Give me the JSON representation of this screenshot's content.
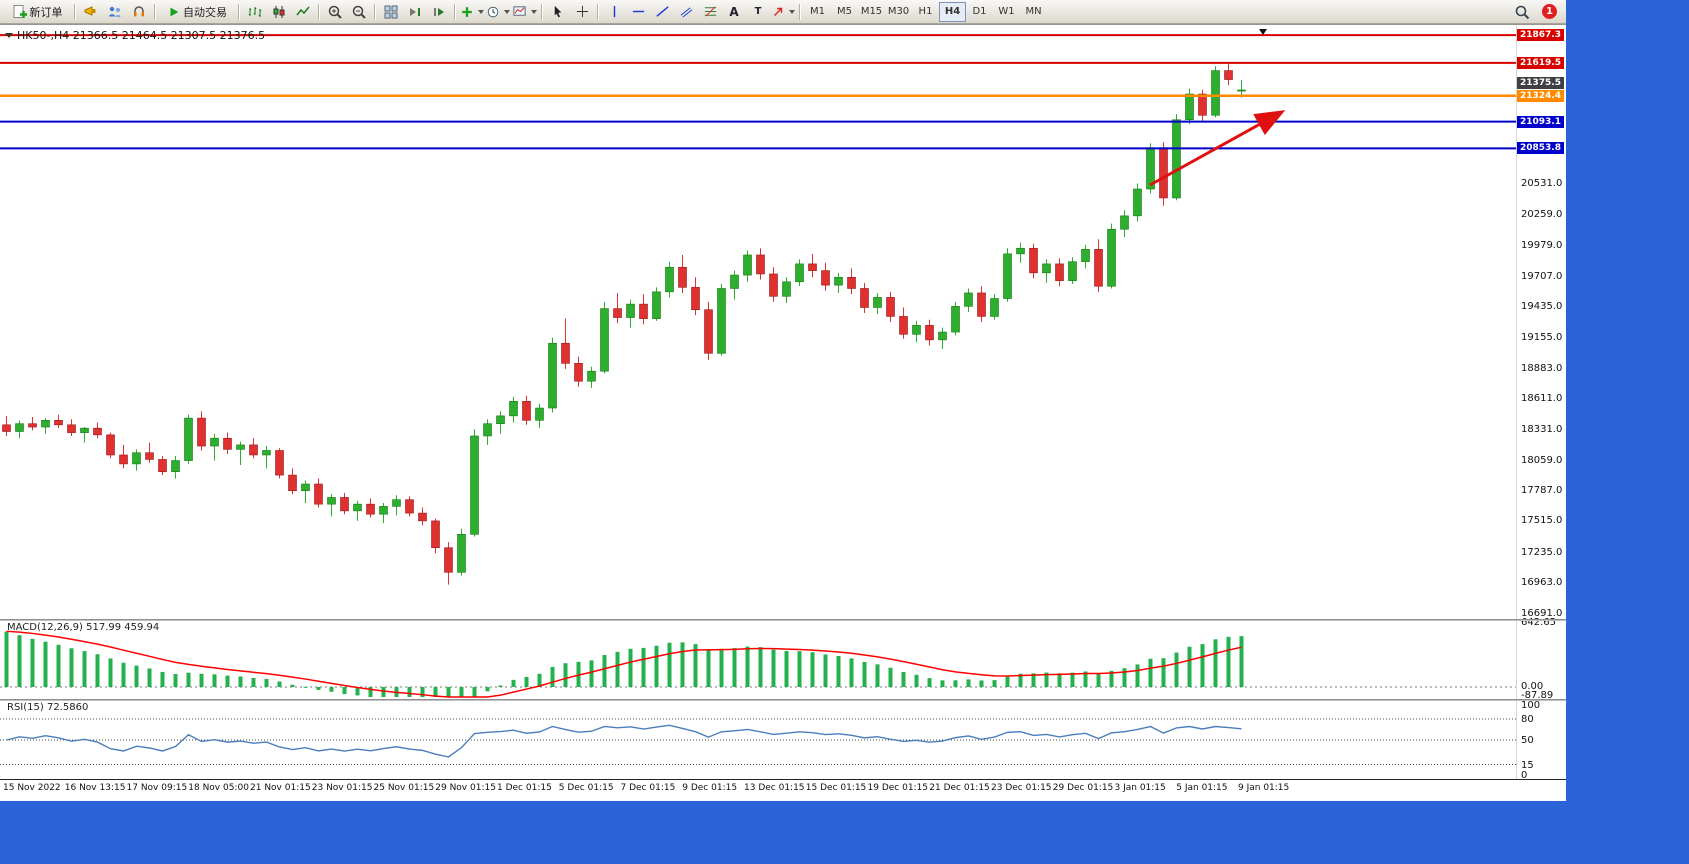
{
  "toolbar": {
    "new_order_label": "新订单",
    "autotrade_label": "自动交易",
    "timeframes": [
      "M1",
      "M5",
      "M15",
      "M30",
      "H1",
      "H4",
      "D1",
      "W1",
      "MN"
    ],
    "active_timeframe": "H4",
    "notification_count": "1",
    "text_tool_label": "A",
    "label_tool_label": "T"
  },
  "chart": {
    "title": "HK50-,H4 21366.5 21464.5 21307.5 21376.5",
    "symbol": "HK50-",
    "period": "H4",
    "ohlc": {
      "open": "21366.5",
      "high": "21464.5",
      "low": "21307.5",
      "close": "21376.5"
    }
  },
  "chart_data": {
    "type": "candlestick",
    "symbol": "HK50-",
    "timeframe": "H4",
    "up_color": "#2eae2e",
    "down_color": "#e03030",
    "price_range": {
      "min": 16660,
      "max": 21940
    },
    "candles": [
      [
        18380,
        18460,
        18280,
        18320
      ],
      [
        18320,
        18420,
        18260,
        18390
      ],
      [
        18390,
        18450,
        18330,
        18360
      ],
      [
        18360,
        18440,
        18300,
        18420
      ],
      [
        18420,
        18470,
        18350,
        18380
      ],
      [
        18380,
        18430,
        18280,
        18310
      ],
      [
        18310,
        18360,
        18220,
        18350
      ],
      [
        18350,
        18400,
        18260,
        18290
      ],
      [
        18290,
        18310,
        18080,
        18110
      ],
      [
        18110,
        18200,
        17990,
        18030
      ],
      [
        18030,
        18160,
        17970,
        18130
      ],
      [
        18130,
        18220,
        18040,
        18070
      ],
      [
        18070,
        18100,
        17930,
        17960
      ],
      [
        17960,
        18100,
        17900,
        18060
      ],
      [
        18060,
        18470,
        18030,
        18440
      ],
      [
        18440,
        18500,
        18150,
        18190
      ],
      [
        18190,
        18300,
        18060,
        18260
      ],
      [
        18260,
        18310,
        18120,
        18160
      ],
      [
        18160,
        18230,
        18020,
        18200
      ],
      [
        18200,
        18260,
        18080,
        18110
      ],
      [
        18110,
        18190,
        17990,
        18150
      ],
      [
        18150,
        18170,
        17900,
        17930
      ],
      [
        17930,
        17990,
        17760,
        17790
      ],
      [
        17790,
        17880,
        17680,
        17850
      ],
      [
        17850,
        17900,
        17640,
        17670
      ],
      [
        17670,
        17760,
        17560,
        17730
      ],
      [
        17730,
        17770,
        17580,
        17610
      ],
      [
        17610,
        17700,
        17520,
        17670
      ],
      [
        17670,
        17720,
        17550,
        17580
      ],
      [
        17580,
        17680,
        17500,
        17650
      ],
      [
        17650,
        17750,
        17570,
        17710
      ],
      [
        17710,
        17740,
        17560,
        17590
      ],
      [
        17590,
        17640,
        17480,
        17520
      ],
      [
        17520,
        17540,
        17230,
        17280
      ],
      [
        17280,
        17330,
        16950,
        17060
      ],
      [
        17060,
        17450,
        17030,
        17400
      ],
      [
        17400,
        18340,
        17380,
        18280
      ],
      [
        18280,
        18430,
        18200,
        18390
      ],
      [
        18390,
        18500,
        18300,
        18460
      ],
      [
        18460,
        18630,
        18400,
        18590
      ],
      [
        18590,
        18640,
        18380,
        18420
      ],
      [
        18420,
        18570,
        18350,
        18530
      ],
      [
        18530,
        19160,
        18490,
        19110
      ],
      [
        19110,
        19330,
        18880,
        18930
      ],
      [
        18930,
        18990,
        18720,
        18770
      ],
      [
        18770,
        18900,
        18710,
        18860
      ],
      [
        18860,
        19480,
        18840,
        19420
      ],
      [
        19420,
        19560,
        19290,
        19340
      ],
      [
        19340,
        19500,
        19250,
        19460
      ],
      [
        19460,
        19550,
        19280,
        19330
      ],
      [
        19330,
        19610,
        19310,
        19570
      ],
      [
        19570,
        19840,
        19520,
        19790
      ],
      [
        19790,
        19900,
        19560,
        19610
      ],
      [
        19610,
        19700,
        19360,
        19410
      ],
      [
        19410,
        19480,
        18960,
        19020
      ],
      [
        19020,
        19640,
        19000,
        19600
      ],
      [
        19600,
        19760,
        19500,
        19720
      ],
      [
        19720,
        19940,
        19660,
        19900
      ],
      [
        19900,
        19960,
        19680,
        19730
      ],
      [
        19730,
        19790,
        19480,
        19530
      ],
      [
        19530,
        19700,
        19470,
        19660
      ],
      [
        19660,
        19860,
        19620,
        19820
      ],
      [
        19820,
        19910,
        19700,
        19760
      ],
      [
        19760,
        19830,
        19580,
        19630
      ],
      [
        19630,
        19740,
        19560,
        19700
      ],
      [
        19700,
        19780,
        19550,
        19600
      ],
      [
        19600,
        19650,
        19380,
        19430
      ],
      [
        19430,
        19560,
        19370,
        19520
      ],
      [
        19520,
        19570,
        19300,
        19350
      ],
      [
        19350,
        19430,
        19150,
        19190
      ],
      [
        19190,
        19310,
        19120,
        19270
      ],
      [
        19270,
        19320,
        19090,
        19140
      ],
      [
        19140,
        19250,
        19060,
        19210
      ],
      [
        19210,
        19480,
        19180,
        19440
      ],
      [
        19440,
        19600,
        19390,
        19560
      ],
      [
        19560,
        19620,
        19300,
        19350
      ],
      [
        19350,
        19550,
        19320,
        19510
      ],
      [
        19510,
        19960,
        19480,
        19910
      ],
      [
        19910,
        20010,
        19830,
        19960
      ],
      [
        19960,
        20000,
        19690,
        19740
      ],
      [
        19740,
        19860,
        19650,
        19820
      ],
      [
        19820,
        19870,
        19620,
        19670
      ],
      [
        19670,
        19880,
        19640,
        19840
      ],
      [
        19840,
        19990,
        19780,
        19950
      ],
      [
        19950,
        20040,
        19570,
        19620
      ],
      [
        19620,
        20180,
        19600,
        20130
      ],
      [
        20130,
        20300,
        20060,
        20250
      ],
      [
        20250,
        20540,
        20200,
        20490
      ],
      [
        20490,
        20900,
        20450,
        20860
      ],
      [
        20860,
        20910,
        20340,
        20410
      ],
      [
        20410,
        21160,
        20390,
        21110
      ],
      [
        21110,
        21390,
        21070,
        21340
      ],
      [
        21340,
        21380,
        21100,
        21150
      ],
      [
        21150,
        21590,
        21130,
        21550
      ],
      [
        21550,
        21610,
        21420,
        21470
      ],
      [
        21366.5,
        21464.5,
        21307.5,
        21376.5
      ]
    ],
    "x_labels": [
      "15 Nov 2022",
      "16 Nov 13:15",
      "17 Nov 09:15",
      "18 Nov 05:00",
      "21 Nov 01:15",
      "23 Nov 01:15",
      "25 Nov 01:15",
      "29 Nov 01:15",
      "1 Dec 01:15",
      "5 Dec 01:15",
      "7 Dec 01:15",
      "9 Dec 01:15",
      "13 Dec 01:15",
      "15 Dec 01:15",
      "19 Dec 01:15",
      "21 Dec 01:15",
      "23 Dec 01:15",
      "29 Dec 01:15",
      "3 Jan 01:15",
      "5 Jan 01:15",
      "9 Jan 01:15"
    ],
    "y_axis_ticks": [
      "20531.0",
      "20259.0",
      "19979.0",
      "19707.0",
      "19435.0",
      "19155.0",
      "18883.0",
      "18611.0",
      "18331.0",
      "18059.0",
      "17787.0",
      "17515.0",
      "17235.0",
      "16963.0",
      "16691.0"
    ],
    "levels": [
      {
        "price": 21867.3,
        "label": "21867.3",
        "color": "#d90000",
        "width": 2
      },
      {
        "price": 21619.5,
        "label": "21619.5",
        "color": "#d90000",
        "width": 2
      },
      {
        "price": 21324.4,
        "label": "21324.4",
        "color": "#ff8a00",
        "width": 2.5
      },
      {
        "price": 21093.1,
        "label": "21093.1",
        "color": "#0000cc",
        "width": 2
      },
      {
        "price": 20853.8,
        "label": "20853.8",
        "color": "#0000cc",
        "width": 2
      }
    ],
    "current_price": {
      "value": 21375.5,
      "label": "21375.5",
      "color": "#3f3f46"
    },
    "arrow": {
      "color": "#e01010"
    },
    "indicators": [
      {
        "name": "MACD",
        "label": "MACD(12,26,9) 517.99 459.94",
        "params": [
          12,
          26,
          9
        ],
        "main_value": "517.99",
        "signal_value": "459.94",
        "axis_labels": [
          "642.65",
          "0.00",
          "-87.89"
        ],
        "histogram_color": "#22b14c",
        "signal_color": "#ff0000"
      },
      {
        "name": "RSI",
        "label": "RSI(15) 72.5860",
        "period": 15,
        "value": "72.5860",
        "axis_labels": [
          "100",
          "80",
          "50",
          "15",
          "0"
        ],
        "level_lines": [
          80,
          50,
          15
        ],
        "line_color": "#4a7ebb"
      }
    ]
  }
}
